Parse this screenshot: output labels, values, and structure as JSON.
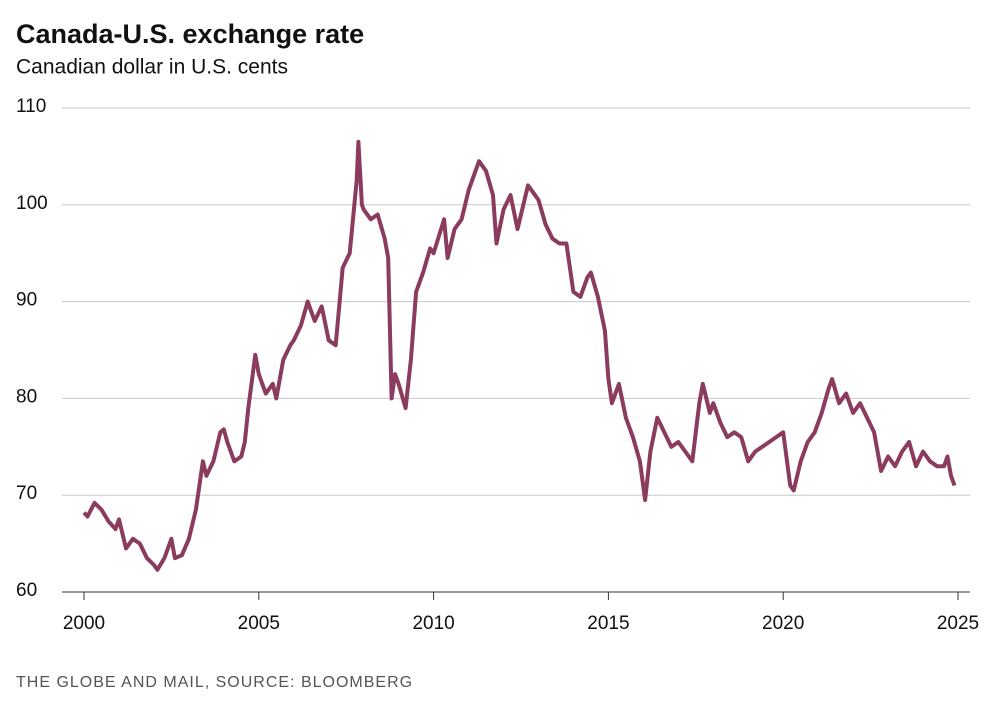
{
  "chart_data": {
    "type": "line",
    "title": "Canada-U.S. exchange rate",
    "subtitle": "Canadian dollar in U.S. cents",
    "source": "THE GLOBE AND MAIL, SOURCE: BLOOMBERG",
    "xlim": [
      2000,
      2025
    ],
    "xticks": [
      2000,
      2005,
      2010,
      2015,
      2020,
      2025
    ],
    "ylim": [
      60,
      110
    ],
    "yticks": [
      60,
      70,
      80,
      90,
      100,
      110
    ],
    "grid": true,
    "x": [
      2000.0,
      2000.1,
      2000.3,
      2000.5,
      2000.7,
      2000.9,
      2001.0,
      2001.2,
      2001.4,
      2001.6,
      2001.8,
      2002.0,
      2002.1,
      2002.3,
      2002.5,
      2002.6,
      2002.8,
      2003.0,
      2003.2,
      2003.4,
      2003.5,
      2003.7,
      2003.9,
      2004.0,
      2004.1,
      2004.3,
      2004.5,
      2004.6,
      2004.7,
      2004.9,
      2005.0,
      2005.2,
      2005.4,
      2005.5,
      2005.7,
      2005.9,
      2006.0,
      2006.2,
      2006.4,
      2006.5,
      2006.6,
      2006.8,
      2007.0,
      2007.2,
      2007.4,
      2007.6,
      2007.8,
      2007.85,
      2007.95,
      2008.0,
      2008.2,
      2008.4,
      2008.6,
      2008.7,
      2008.8,
      2008.9,
      2009.0,
      2009.2,
      2009.35,
      2009.5,
      2009.7,
      2009.9,
      2010.0,
      2010.3,
      2010.4,
      2010.6,
      2010.8,
      2011.0,
      2011.3,
      2011.5,
      2011.7,
      2011.8,
      2012.0,
      2012.2,
      2012.4,
      2012.5,
      2012.7,
      2012.9,
      2013.0,
      2013.2,
      2013.4,
      2013.6,
      2013.8,
      2014.0,
      2014.2,
      2014.4,
      2014.5,
      2014.7,
      2014.9,
      2015.0,
      2015.1,
      2015.3,
      2015.5,
      2015.7,
      2015.9,
      2016.05,
      2016.2,
      2016.4,
      2016.6,
      2016.8,
      2017.0,
      2017.2,
      2017.4,
      2017.6,
      2017.7,
      2017.9,
      2018.0,
      2018.2,
      2018.4,
      2018.6,
      2018.8,
      2019.0,
      2019.2,
      2019.4,
      2019.6,
      2019.8,
      2020.0,
      2020.2,
      2020.3,
      2020.5,
      2020.7,
      2020.9,
      2021.1,
      2021.3,
      2021.4,
      2021.6,
      2021.8,
      2022.0,
      2022.2,
      2022.4,
      2022.6,
      2022.8,
      2023.0,
      2023.2,
      2023.4,
      2023.6,
      2023.8,
      2024.0,
      2024.2,
      2024.4,
      2024.6,
      2024.7,
      2024.8,
      2024.9
    ],
    "series": [
      {
        "color": "#8a3b5e",
        "values": [
          68.2,
          67.8,
          69.2,
          68.5,
          67.3,
          66.5,
          67.5,
          64.5,
          65.5,
          65.0,
          63.5,
          62.8,
          62.3,
          63.5,
          65.5,
          63.5,
          63.8,
          65.5,
          68.5,
          73.5,
          72.0,
          73.5,
          76.5,
          76.8,
          75.5,
          73.5,
          74.0,
          75.5,
          79.0,
          84.5,
          82.5,
          80.5,
          81.5,
          80.0,
          84.0,
          85.5,
          86.0,
          87.5,
          90.0,
          89.0,
          88.0,
          89.5,
          86.0,
          85.5,
          93.5,
          95.0,
          102.5,
          106.5,
          100.0,
          99.5,
          98.5,
          99.0,
          96.5,
          94.5,
          80.0,
          82.5,
          81.5,
          79.0,
          84.0,
          91.0,
          93.0,
          95.5,
          95.0,
          98.5,
          94.5,
          97.5,
          98.5,
          101.5,
          104.5,
          103.5,
          101.0,
          96.0,
          99.5,
          101.0,
          97.5,
          99.0,
          102.0,
          101.0,
          100.5,
          98.0,
          96.5,
          96.0,
          96.0,
          91.0,
          90.5,
          92.5,
          93.0,
          90.5,
          87.0,
          82.0,
          79.5,
          81.5,
          78.0,
          76.0,
          73.5,
          69.5,
          74.5,
          78.0,
          76.5,
          75.0,
          75.5,
          74.5,
          73.5,
          79.5,
          81.5,
          78.5,
          79.5,
          77.5,
          76.0,
          76.5,
          76.0,
          73.5,
          74.5,
          75.0,
          75.5,
          76.0,
          76.5,
          71.0,
          70.5,
          73.5,
          75.5,
          76.5,
          78.5,
          81.0,
          82.0,
          79.5,
          80.5,
          78.5,
          79.5,
          78.0,
          76.5,
          72.5,
          74.0,
          73.0,
          74.5,
          75.5,
          73.0,
          74.5,
          73.5,
          73.0,
          73.0,
          74.0,
          72.0,
          71.0
        ]
      }
    ]
  }
}
